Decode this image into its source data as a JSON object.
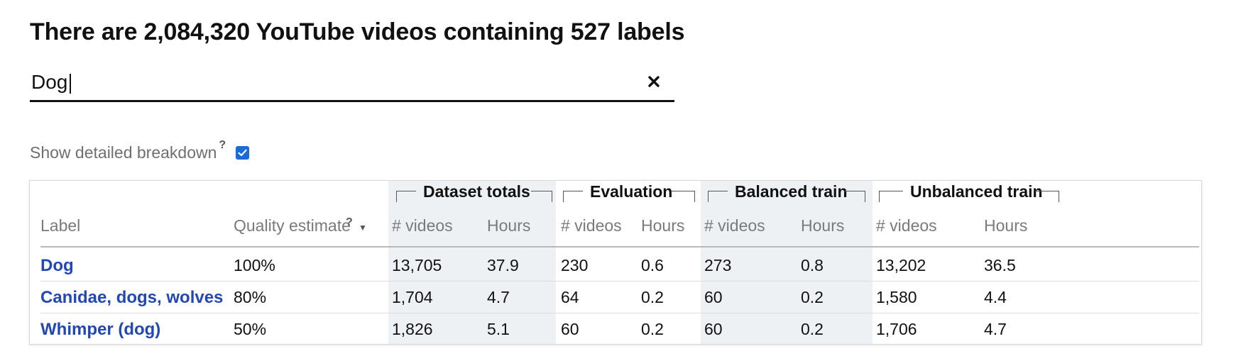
{
  "header": {
    "title": "There are 2,084,320 YouTube videos containing 527 labels"
  },
  "search": {
    "value": "Dog",
    "clear_icon": "close-icon"
  },
  "options": {
    "detailed_breakdown_label": "Show detailed breakdown",
    "help_mark": "?",
    "detailed_breakdown_checked": true
  },
  "table": {
    "groups": [
      "Dataset totals",
      "Evaluation",
      "Balanced train",
      "Unbalanced train"
    ],
    "columns": {
      "label": "Label",
      "quality": "Quality estimate",
      "quality_help": "?",
      "sort_icon": "▼",
      "videos": "# videos",
      "hours": "Hours"
    },
    "rows": [
      {
        "label": "Dog",
        "quality": "100%",
        "cells": [
          "13,705",
          "37.9",
          "230",
          "0.6",
          "273",
          "0.8",
          "13,202",
          "36.5"
        ]
      },
      {
        "label": "Canidae, dogs, wolves",
        "quality": "80%",
        "cells": [
          "1,704",
          "4.7",
          "64",
          "0.2",
          "60",
          "0.2",
          "1,580",
          "4.4"
        ]
      },
      {
        "label": "Whimper (dog)",
        "quality": "50%",
        "cells": [
          "1,826",
          "5.1",
          "60",
          "0.2",
          "60",
          "0.2",
          "1,706",
          "4.7"
        ]
      }
    ]
  },
  "colors": {
    "link": "#2347b3",
    "checkbox": "#1a6ad8",
    "shade": "#eef1f4"
  }
}
